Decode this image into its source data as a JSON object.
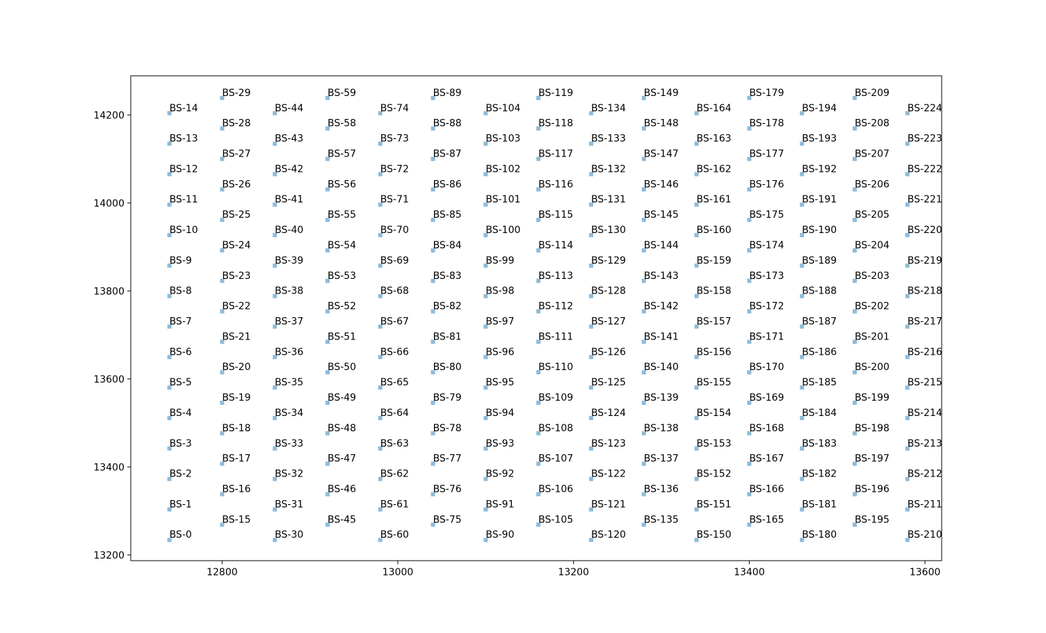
{
  "chart_data": {
    "type": "scatter",
    "title": "",
    "xlabel": "",
    "ylabel": "",
    "xlim": [
      12696,
      13619
    ],
    "ylim": [
      13187,
      14289
    ],
    "x_ticks": [
      12800,
      13000,
      13200,
      13400,
      13600
    ],
    "y_ticks": [
      13200,
      13400,
      13600,
      13800,
      14000,
      14200
    ],
    "grid": false,
    "legend": "none",
    "marker": "square",
    "marker_color": "#1f77b4",
    "marker_alpha": 0.5,
    "label_prefix": "BS-",
    "columns": {
      "x_start": 12740,
      "x_step": 60,
      "count": 15,
      "points_per_column": 15,
      "y_even_start": 13234.1,
      "y_odd_start": 13268.74,
      "y_step": 69.28
    },
    "labels": [
      "BS-0",
      "BS-1",
      "BS-2",
      "BS-3",
      "BS-4",
      "BS-5",
      "BS-6",
      "BS-7",
      "BS-8",
      "BS-9",
      "BS-10",
      "BS-11",
      "BS-12",
      "BS-13",
      "BS-14",
      "BS-15",
      "BS-16",
      "BS-17",
      "BS-18",
      "BS-19",
      "BS-20",
      "BS-21",
      "BS-22",
      "BS-23",
      "BS-24",
      "BS-25",
      "BS-26",
      "BS-27",
      "BS-28",
      "BS-29",
      "BS-30",
      "BS-31",
      "BS-32",
      "BS-33",
      "BS-34",
      "BS-35",
      "BS-36",
      "BS-37",
      "BS-38",
      "BS-39",
      "BS-40",
      "BS-41",
      "BS-42",
      "BS-43",
      "BS-44",
      "BS-45",
      "BS-46",
      "BS-47",
      "BS-48",
      "BS-49",
      "BS-50",
      "BS-51",
      "BS-52",
      "BS-53",
      "BS-54",
      "BS-55",
      "BS-56",
      "BS-57",
      "BS-58",
      "BS-59",
      "BS-60",
      "BS-61",
      "BS-62",
      "BS-63",
      "BS-64",
      "BS-65",
      "BS-66",
      "BS-67",
      "BS-68",
      "BS-69",
      "BS-70",
      "BS-71",
      "BS-72",
      "BS-73",
      "BS-74",
      "BS-75",
      "BS-76",
      "BS-77",
      "BS-78",
      "BS-79",
      "BS-80",
      "BS-81",
      "BS-82",
      "BS-83",
      "BS-84",
      "BS-85",
      "BS-86",
      "BS-87",
      "BS-88",
      "BS-89",
      "BS-90",
      "BS-91",
      "BS-92",
      "BS-93",
      "BS-94",
      "BS-95",
      "BS-96",
      "BS-97",
      "BS-98",
      "BS-99",
      "BS-100",
      "BS-101",
      "BS-102",
      "BS-103",
      "BS-104",
      "BS-105",
      "BS-106",
      "BS-107",
      "BS-108",
      "BS-109",
      "BS-110",
      "BS-111",
      "BS-112",
      "BS-113",
      "BS-114",
      "BS-115",
      "BS-116",
      "BS-117",
      "BS-118",
      "BS-119",
      "BS-120",
      "BS-121",
      "BS-122",
      "BS-123",
      "BS-124",
      "BS-125",
      "BS-126",
      "BS-127",
      "BS-128",
      "BS-129",
      "BS-130",
      "BS-131",
      "BS-132",
      "BS-133",
      "BS-134",
      "BS-135",
      "BS-136",
      "BS-137",
      "BS-138",
      "BS-139",
      "BS-140",
      "BS-141",
      "BS-142",
      "BS-143",
      "BS-144",
      "BS-145",
      "BS-146",
      "BS-147",
      "BS-148",
      "BS-149",
      "BS-150",
      "BS-151",
      "BS-152",
      "BS-153",
      "BS-154",
      "BS-155",
      "BS-156",
      "BS-157",
      "BS-158",
      "BS-159",
      "BS-160",
      "BS-161",
      "BS-162",
      "BS-163",
      "BS-164",
      "BS-165",
      "BS-166",
      "BS-167",
      "BS-168",
      "BS-169",
      "BS-170",
      "BS-171",
      "BS-172",
      "BS-173",
      "BS-174",
      "BS-175",
      "BS-176",
      "BS-177",
      "BS-178",
      "BS-179",
      "BS-180",
      "BS-181",
      "BS-182",
      "BS-183",
      "BS-184",
      "BS-185",
      "BS-186",
      "BS-187",
      "BS-188",
      "BS-189",
      "BS-190",
      "BS-191",
      "BS-192",
      "BS-193",
      "BS-194",
      "BS-195",
      "BS-196",
      "BS-197",
      "BS-198",
      "BS-199",
      "BS-200",
      "BS-201",
      "BS-202",
      "BS-203",
      "BS-204",
      "BS-205",
      "BS-206",
      "BS-207",
      "BS-208",
      "BS-209",
      "BS-210",
      "BS-211",
      "BS-212",
      "BS-213",
      "BS-214",
      "BS-215",
      "BS-216",
      "BS-217",
      "BS-218",
      "BS-219",
      "BS-220",
      "BS-221",
      "BS-222",
      "BS-223",
      "BS-224"
    ]
  }
}
